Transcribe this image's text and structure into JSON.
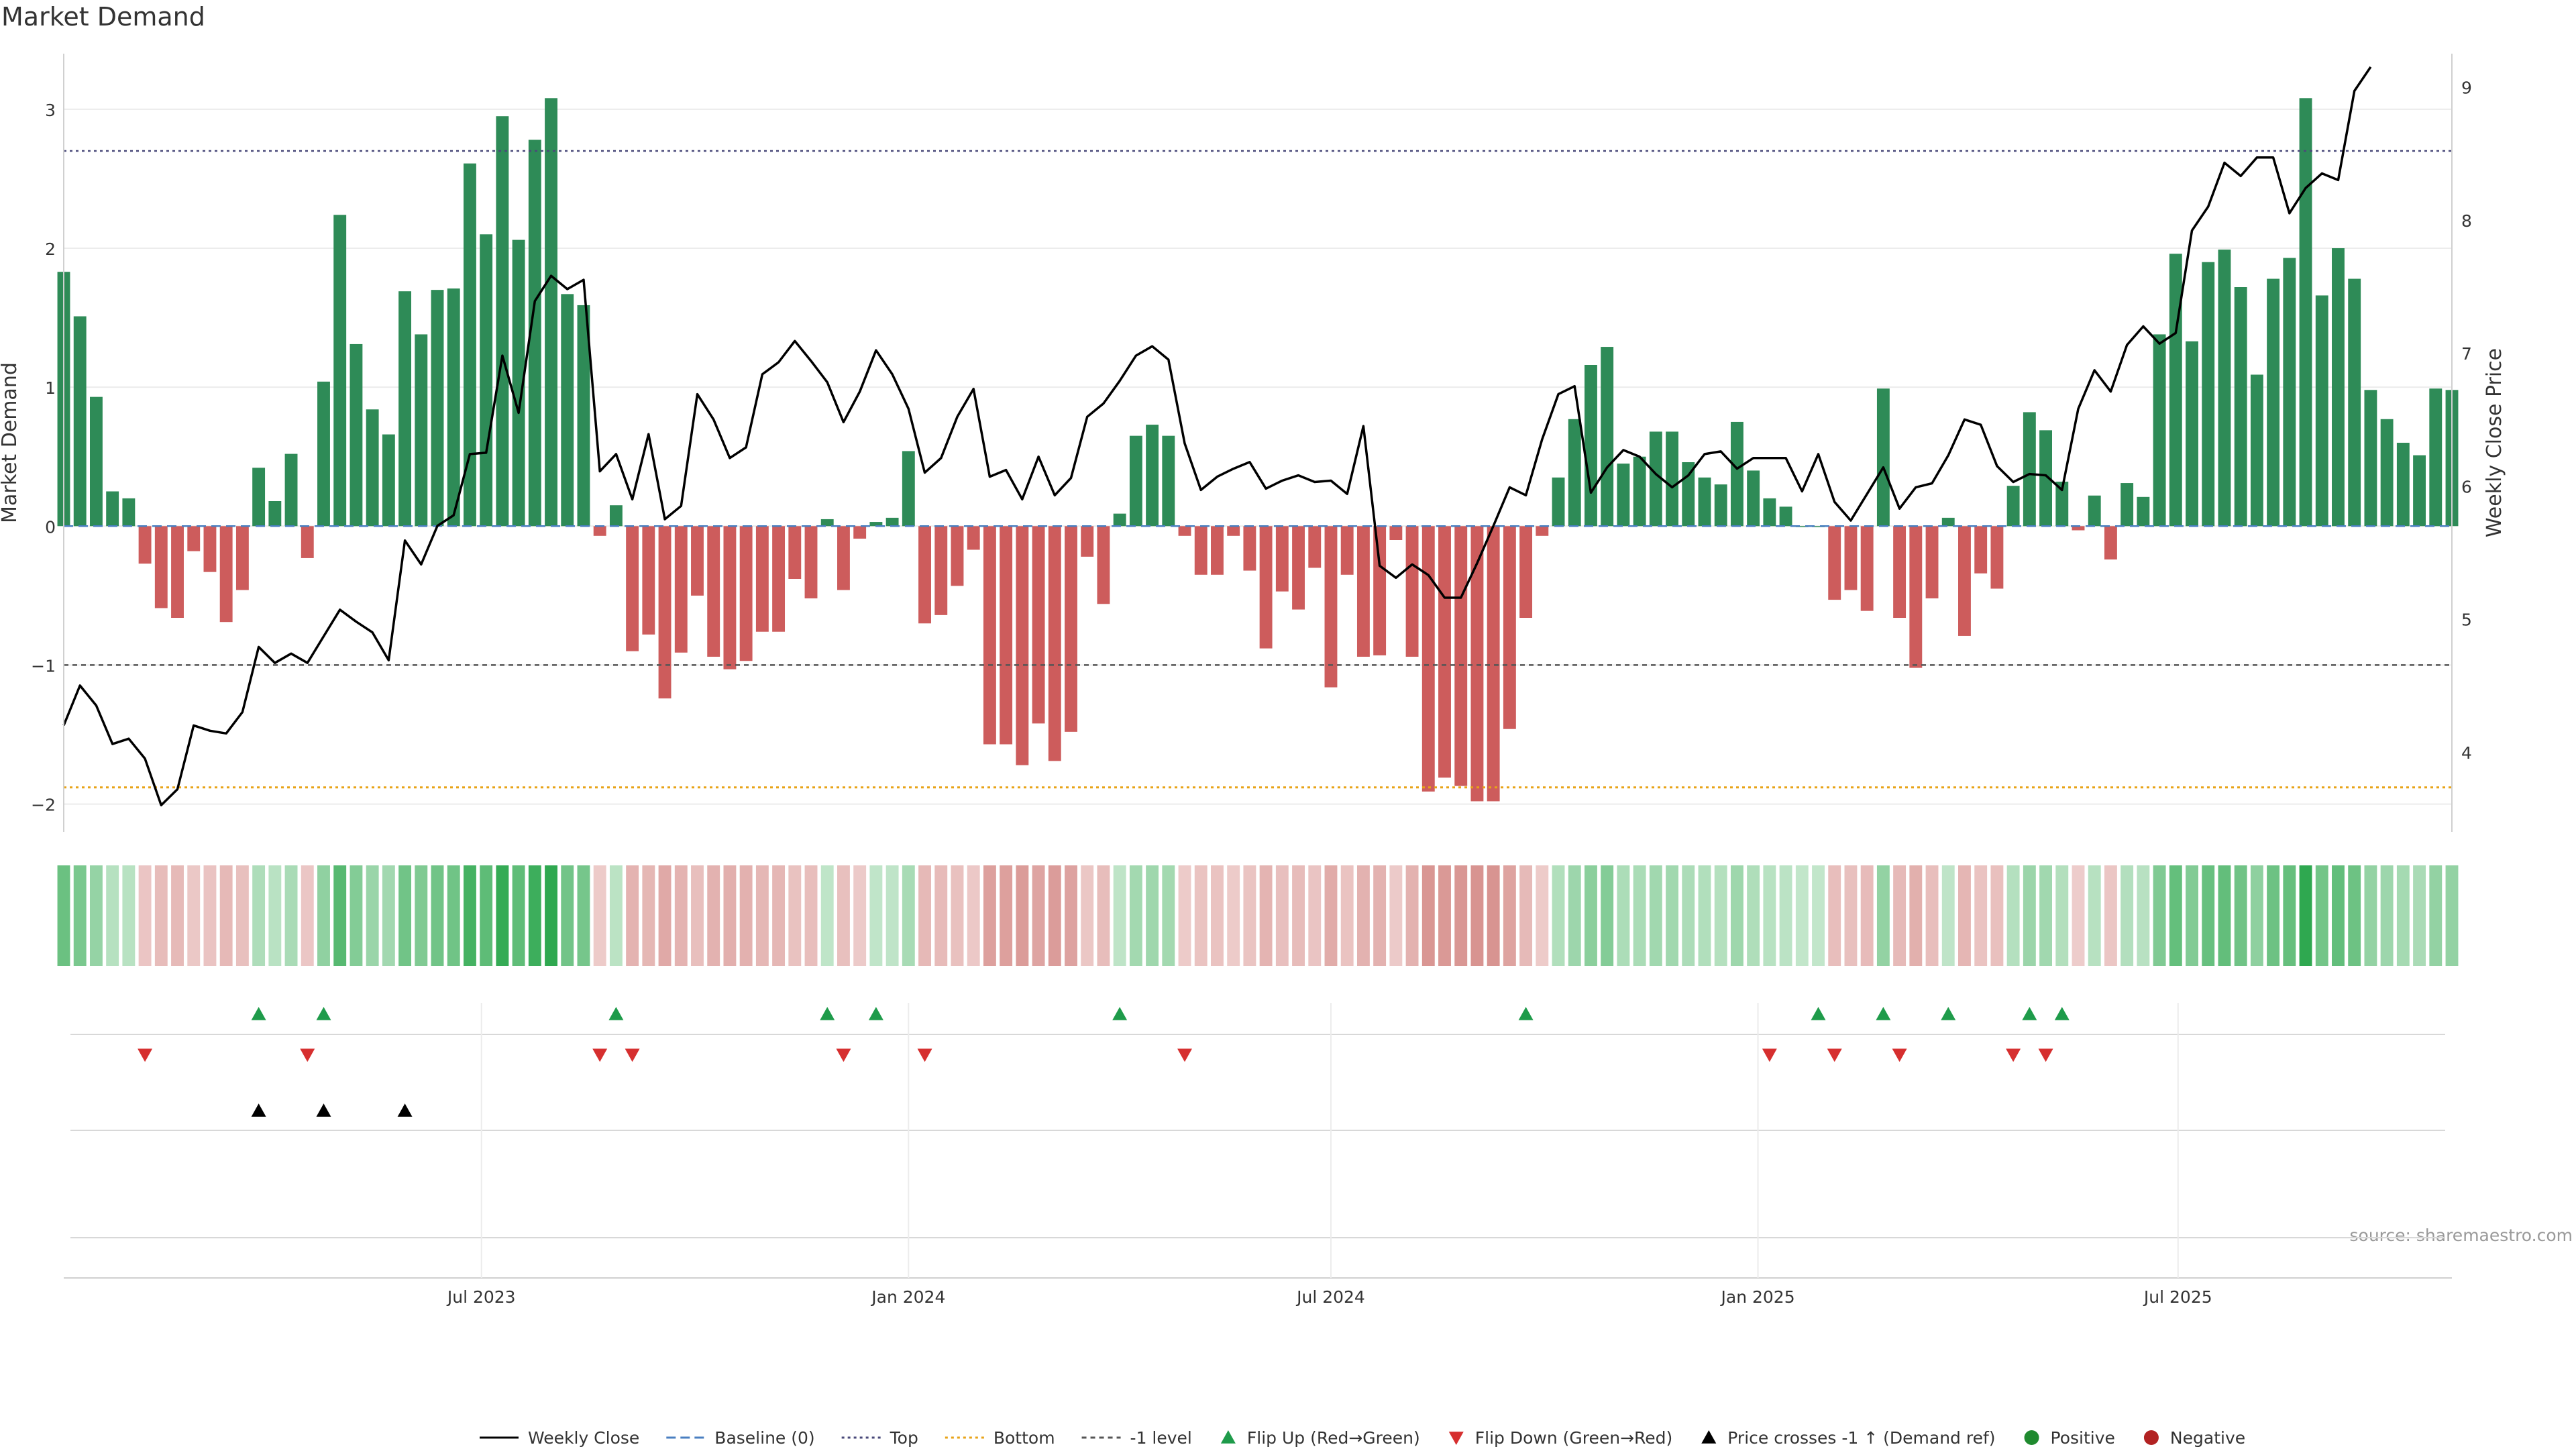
{
  "chart_data": {
    "type": "bar",
    "title": "Market Demand",
    "ylabel": "Market Demand",
    "ylabel_right": "Weekly Close Price",
    "ylim": [
      -2.2,
      3.4
    ],
    "y2lim": [
      3.4,
      9.25
    ],
    "yticks": [
      "−2",
      "−1",
      "0",
      "1",
      "2",
      "3"
    ],
    "yticks_values": [
      -2,
      -1,
      0,
      1,
      2,
      3
    ],
    "y2ticks": [
      "4",
      "5",
      "6",
      "7",
      "8",
      "9"
    ],
    "y2ticks_values": [
      4,
      5,
      6,
      7,
      8,
      9
    ],
    "xlim": [
      "2023-01-02",
      "2025-10-27"
    ],
    "xticks": [
      "Jul 2023",
      "Jan 2024",
      "Jul 2024",
      "Jan 2025",
      "Jul 2025"
    ],
    "xticks_dates": [
      "2023-07-01",
      "2024-01-01",
      "2024-07-01",
      "2025-01-01",
      "2025-07-01"
    ],
    "first_week": "2023-01-02",
    "week_step_days": 7,
    "colors": {
      "positive": "#2e8b57",
      "negative": "#cd5c5c",
      "line": "#000000",
      "top_line": "#4a4a7a",
      "bottom_line": "#e8a317",
      "flip_up": "#1e9b4a",
      "flip_down": "#d62f2f",
      "price_cross": "#000000",
      "positive_dot": "#1f8a2f",
      "negative_dot": "#b22222"
    },
    "demand": [
      1.83,
      1.51,
      0.93,
      0.25,
      0.2,
      -0.27,
      -0.59,
      -0.66,
      -0.18,
      -0.33,
      -0.69,
      -0.46,
      0.42,
      0.18,
      0.52,
      -0.23,
      1.04,
      2.24,
      1.31,
      0.84,
      0.66,
      1.69,
      1.38,
      1.7,
      1.71,
      2.61,
      2.1,
      2.95,
      2.06,
      2.78,
      3.08,
      1.67,
      1.59,
      -0.07,
      0.15,
      -0.9,
      -0.78,
      -1.24,
      -0.91,
      -0.5,
      -0.94,
      -1.03,
      -0.97,
      -0.76,
      -0.76,
      -0.38,
      -0.52,
      0.05,
      -0.46,
      -0.09,
      0.03,
      0.06,
      0.54,
      -0.7,
      -0.64,
      -0.43,
      -0.17,
      -1.57,
      -1.57,
      -1.72,
      -1.42,
      -1.69,
      -1.48,
      -0.22,
      -0.56,
      0.09,
      0.65,
      0.73,
      0.65,
      -0.07,
      -0.35,
      -0.35,
      -0.07,
      -0.32,
      -0.88,
      -0.47,
      -0.6,
      -0.3,
      -1.16,
      -0.35,
      -0.94,
      -0.93,
      -0.1,
      -0.94,
      -1.91,
      -1.81,
      -1.87,
      -1.98,
      -1.98,
      -1.46,
      -0.66,
      -0.07,
      0.35,
      0.77,
      1.16,
      1.29,
      0.45,
      0.5,
      0.68,
      0.68,
      0.46,
      0.35,
      0.3,
      0.75,
      0.4,
      0.2,
      0.14,
      0.0,
      0.0,
      -0.53,
      -0.46,
      -0.61,
      0.99,
      -0.66,
      -1.02,
      -0.52,
      0.06,
      -0.79,
      -0.34,
      -0.45,
      0.29,
      0.82,
      0.69,
      0.32,
      -0.03,
      0.22,
      -0.24,
      0.31,
      0.21,
      1.38,
      1.96,
      1.33,
      1.9,
      1.99,
      1.72,
      1.09,
      1.78,
      1.93,
      3.08,
      1.66,
      2.0,
      1.78,
      0.98,
      0.77,
      0.6,
      0.51,
      0.99,
      0.98
    ],
    "close": [
      4.2,
      4.5,
      4.35,
      4.06,
      4.1,
      3.95,
      3.6,
      3.72,
      4.2,
      4.16,
      4.14,
      4.3,
      4.79,
      4.67,
      4.74,
      4.67,
      4.87,
      5.07,
      4.98,
      4.9,
      4.69,
      5.59,
      5.41,
      5.7,
      5.78,
      6.24,
      6.25,
      6.98,
      6.55,
      7.39,
      7.58,
      7.48,
      7.55,
      6.11,
      6.24,
      5.9,
      6.39,
      5.75,
      5.85,
      6.69,
      6.5,
      6.21,
      6.29,
      6.84,
      6.93,
      7.09,
      6.94,
      6.78,
      6.48,
      6.71,
      7.02,
      6.84,
      6.58,
      6.1,
      6.21,
      6.52,
      6.73,
      6.07,
      6.12,
      5.9,
      6.22,
      5.93,
      6.06,
      6.52,
      6.62,
      6.79,
      6.98,
      7.05,
      6.95,
      6.32,
      5.97,
      6.07,
      6.13,
      6.18,
      5.98,
      6.04,
      6.08,
      6.03,
      6.04,
      5.94,
      6.45,
      5.4,
      5.31,
      5.41,
      5.33,
      5.16,
      5.16,
      5.42,
      5.7,
      5.99,
      5.93,
      6.35,
      6.69,
      6.75,
      5.95,
      6.14,
      6.27,
      6.22,
      6.09,
      5.99,
      6.08,
      6.24,
      6.26,
      6.13,
      6.21,
      6.21,
      6.21,
      5.96,
      6.24,
      5.88,
      5.74,
      5.94,
      6.14,
      5.83,
      5.99,
      6.02,
      6.23,
      6.5,
      6.46,
      6.15,
      6.03,
      6.09,
      6.08,
      5.97,
      6.58,
      6.87,
      6.71,
      7.06,
      7.2,
      7.07,
      7.15,
      7.92,
      8.1,
      8.43,
      8.33,
      8.47,
      8.47,
      8.05,
      8.24,
      8.35,
      8.3,
      8.97,
      9.15
    ],
    "top_level": 2.7,
    "bottom_level": -1.88,
    "minus_one_level": -1,
    "baseline": 0,
    "flip_up_weeks": [
      12,
      16,
      34,
      47,
      50,
      65,
      90,
      108,
      112,
      116,
      121,
      123
    ],
    "flip_down_weeks": [
      5,
      15,
      33,
      35,
      48,
      53,
      69,
      105,
      109,
      113,
      120,
      122
    ],
    "price_cross_weeks": [
      12,
      16,
      21
    ],
    "source": "source: sharemaestro.com",
    "legend_position": "bottom",
    "legend": [
      {
        "label": "Weekly Close",
        "kind": "line-solid"
      },
      {
        "label": "Baseline (0)",
        "kind": "line-dash-blue"
      },
      {
        "label": "Top",
        "kind": "line-dot-gray"
      },
      {
        "label": "Bottom",
        "kind": "line-dot-orange"
      },
      {
        "label": "-1 level",
        "kind": "line-dash-gray"
      },
      {
        "label": "Flip Up (Red→Green)",
        "kind": "tri-up-green"
      },
      {
        "label": "Flip Down (Green→Red)",
        "kind": "tri-down-red"
      },
      {
        "label": "Price crosses -1 ↑ (Demand ref)",
        "kind": "tri-up-black"
      },
      {
        "label": "Positive",
        "kind": "dot-green"
      },
      {
        "label": "Negative",
        "kind": "dot-red"
      }
    ]
  }
}
